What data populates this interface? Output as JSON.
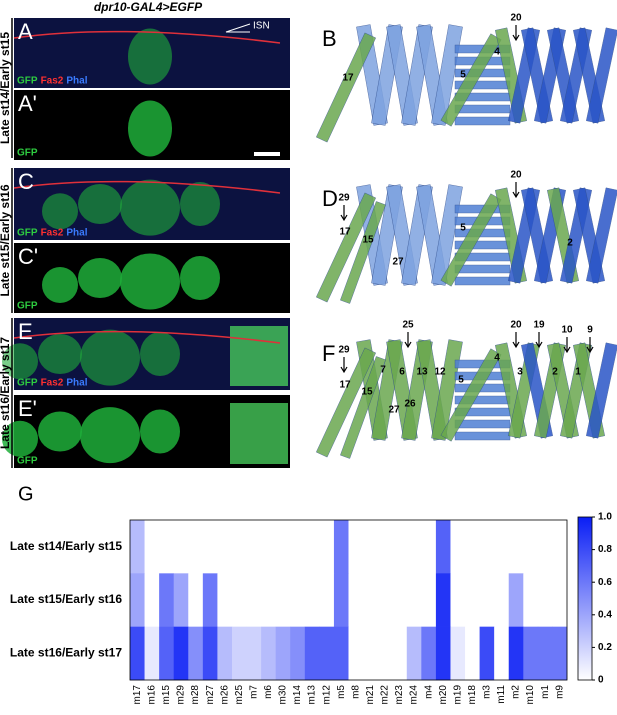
{
  "figure_title": "dpr10-GAL4>EGFP",
  "image_panels": [
    {
      "label": "A",
      "channels": [
        "GFP",
        "Fas2",
        "Phal"
      ],
      "annotation": "ISN"
    },
    {
      "label": "A'",
      "channels": [
        "GFP"
      ]
    },
    {
      "label": "C",
      "channels": [
        "GFP",
        "Fas2",
        "Phal"
      ]
    },
    {
      "label": "C'",
      "channels": [
        "GFP"
      ]
    },
    {
      "label": "E",
      "channels": [
        "GFP",
        "Fas2",
        "Phal"
      ]
    },
    {
      "label": "E'",
      "channels": [
        "GFP"
      ]
    }
  ],
  "diagrams": [
    {
      "label": "B",
      "numbers": [
        "20",
        "4",
        "5",
        "17"
      ]
    },
    {
      "label": "D",
      "numbers": [
        "29",
        "20",
        "17",
        "15",
        "27",
        "5",
        "2"
      ]
    },
    {
      "label": "F",
      "numbers": [
        "29",
        "25",
        "20",
        "19",
        "10",
        "9",
        "17",
        "15",
        "7",
        "6",
        "13",
        "12",
        "27",
        "26",
        "5",
        "4",
        "3",
        "2",
        "1"
      ]
    }
  ],
  "chart_data": {
    "type": "heatmap",
    "title": "G",
    "categories": [
      "m17",
      "m16",
      "m15",
      "m29",
      "m28",
      "m27",
      "m26",
      "m25",
      "m7",
      "m6",
      "m30",
      "m14",
      "m13",
      "m12",
      "m5",
      "m8",
      "m21",
      "m22",
      "m23",
      "m24",
      "m4",
      "m20",
      "m19",
      "m18",
      "m3",
      "m11",
      "m2",
      "m10",
      "m1",
      "m9"
    ],
    "rows": [
      "Late st14/Early st15",
      "Late st15/Early st16",
      "Late st16/Early st17"
    ],
    "values": [
      [
        0.3,
        0,
        0,
        0,
        0,
        0,
        0,
        0,
        0,
        0,
        0,
        0,
        0,
        0,
        0.6,
        0,
        0,
        0,
        0,
        0,
        0,
        0.7,
        0,
        0,
        0,
        0,
        0,
        0,
        0,
        0
      ],
      [
        0.4,
        0,
        0.6,
        0.4,
        0,
        0.6,
        0,
        0,
        0,
        0,
        0,
        0,
        0,
        0,
        0.6,
        0,
        0,
        0,
        0,
        0,
        0,
        0.9,
        0,
        0,
        0,
        0,
        0.4,
        0,
        0,
        0
      ],
      [
        0.8,
        0.1,
        0.7,
        0.9,
        0.5,
        0.8,
        0.3,
        0.2,
        0.2,
        0.3,
        0.4,
        0.5,
        0.7,
        0.7,
        0.7,
        0,
        0,
        0,
        0,
        0.3,
        0.6,
        0.9,
        0.1,
        0,
        0.8,
        0,
        0.9,
        0.6,
        0.6,
        0.6
      ]
    ],
    "colors": [
      "#ffffff",
      "#0a1ef5"
    ],
    "clim": [
      0,
      1
    ],
    "cticks": [
      0,
      0.2,
      0.4,
      0.6,
      0.8,
      {
        "value": 1,
        "label": "1.0"
      }
    ]
  }
}
